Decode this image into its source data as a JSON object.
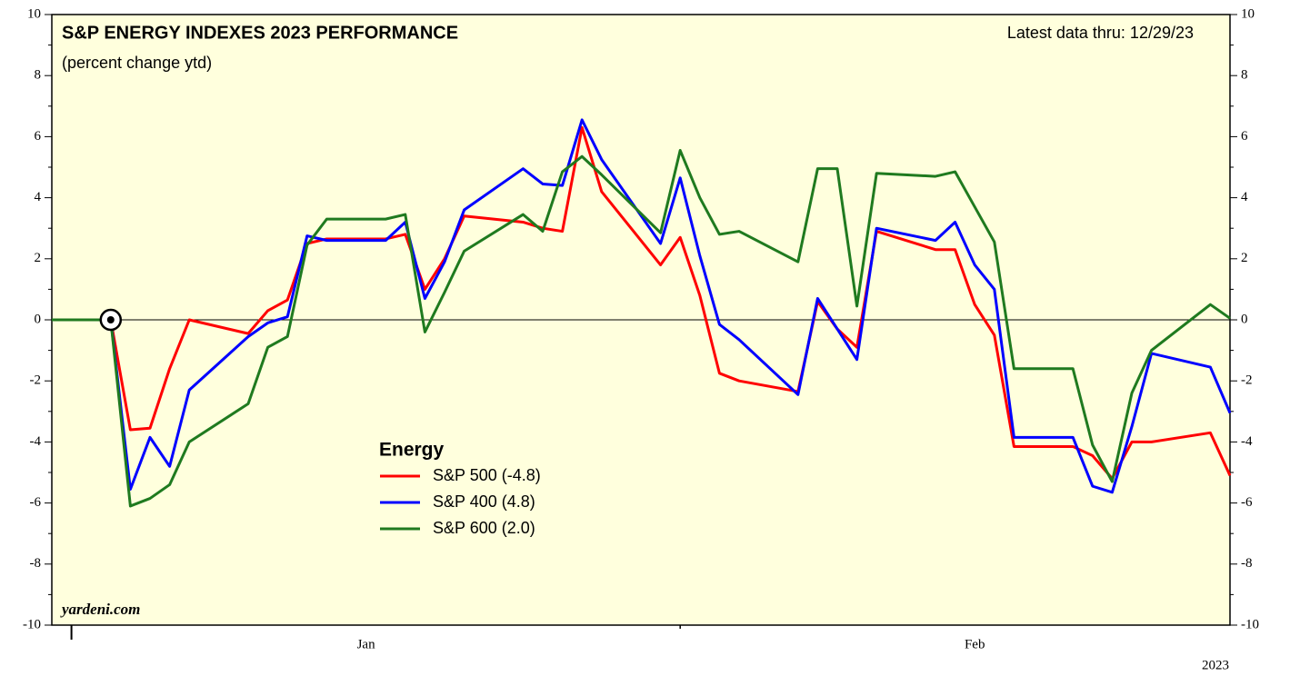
{
  "chart_data": {
    "type": "line",
    "title": "S&P ENERGY INDEXES 2023 PERFORMANCE",
    "subtitle": "(percent change ytd)",
    "annotation": "Latest data thru: 12/29/23",
    "source": "yardeni.com",
    "year_label": "2023",
    "legend_title": "Energy",
    "x": [
      0,
      3,
      4,
      5,
      6,
      7,
      10,
      11,
      12,
      13,
      14,
      17,
      18,
      19,
      20,
      21,
      24,
      25,
      26,
      27,
      28,
      31,
      32,
      33,
      34,
      35,
      38,
      39,
      40,
      41,
      42,
      45,
      46,
      47,
      48,
      49,
      52,
      53,
      54,
      55,
      56,
      59,
      60
    ],
    "xlim": [
      0,
      60
    ],
    "xticks": [
      1,
      32
    ],
    "month_labels": [
      {
        "value": 16,
        "label": "Jan"
      },
      {
        "value": 47,
        "label": "Feb"
      }
    ],
    "marker": {
      "x": 3,
      "y": 0
    },
    "ylim": [
      -10,
      10
    ],
    "yticks": [
      -10,
      -8,
      -6,
      -4,
      -2,
      0,
      2,
      4,
      6,
      8,
      10
    ],
    "yminor": [
      -9,
      -7,
      -5,
      -3,
      -1,
      1,
      3,
      5,
      7,
      9
    ],
    "zero_line": 0,
    "series": [
      {
        "name": "S&P 500 (-4.8)",
        "color": "#ff0000",
        "values": [
          0,
          0,
          -3.6,
          -3.55,
          -1.6,
          0,
          -0.45,
          0.3,
          0.65,
          2.5,
          2.65,
          2.65,
          2.8,
          1.0,
          2.0,
          3.4,
          3.2,
          3.0,
          2.9,
          6.3,
          4.2,
          1.8,
          2.7,
          0.8,
          -1.75,
          -2.0,
          -2.35,
          0.6,
          -0.3,
          -0.9,
          2.9,
          2.3,
          2.3,
          0.5,
          -0.5,
          -4.15,
          -4.15,
          -4.45,
          -5.2,
          -4.0,
          -4.0,
          -3.7,
          -5.1
        ]
      },
      {
        "name": "S&P 400 (4.8)",
        "color": "#0000ff",
        "values": [
          0,
          0,
          -5.55,
          -3.85,
          -4.8,
          -2.3,
          -0.55,
          -0.1,
          0.1,
          2.75,
          2.6,
          2.6,
          3.2,
          0.7,
          1.9,
          3.6,
          4.95,
          4.45,
          4.4,
          6.55,
          5.25,
          2.5,
          4.65,
          2.1,
          -0.15,
          -0.65,
          -2.45,
          0.7,
          -0.3,
          -1.3,
          3.0,
          2.6,
          3.2,
          1.8,
          1.0,
          -3.85,
          -3.85,
          -5.45,
          -5.65,
          -3.5,
          -1.1,
          -1.55,
          -3.05
        ]
      },
      {
        "name": "S&P 600 (2.0)",
        "color": "#1f7a1f",
        "values": [
          0,
          0,
          -6.1,
          -5.85,
          -5.4,
          -4.0,
          -2.75,
          -0.9,
          -0.55,
          2.45,
          3.3,
          3.3,
          3.45,
          -0.4,
          0.9,
          2.25,
          3.45,
          2.9,
          4.85,
          5.35,
          4.75,
          2.85,
          5.55,
          4.0,
          2.8,
          2.9,
          1.9,
          4.95,
          4.95,
          0.45,
          4.8,
          4.7,
          4.85,
          3.7,
          2.55,
          -1.6,
          -1.6,
          -4.1,
          -5.3,
          -2.4,
          -1.0,
          0.5,
          0.05
        ]
      }
    ]
  }
}
